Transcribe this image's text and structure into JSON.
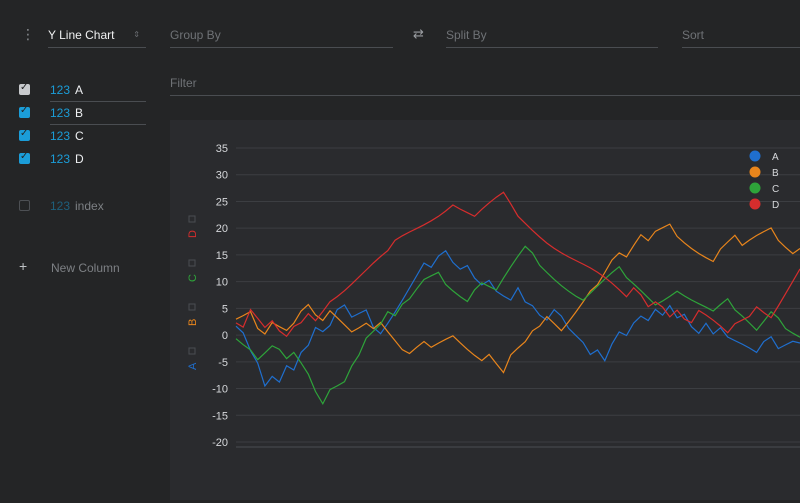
{
  "toolbar": {
    "plugin": "Y Line Chart",
    "group_by_placeholder": "Group By",
    "split_by_placeholder": "Split By",
    "sort_placeholder": "Sort",
    "filter_placeholder": "Filter"
  },
  "columns": [
    {
      "type": "123",
      "name": "A",
      "checked": true
    },
    {
      "type": "123",
      "name": "B",
      "checked": true
    },
    {
      "type": "123",
      "name": "C",
      "checked": true
    },
    {
      "type": "123",
      "name": "D",
      "checked": true
    }
  ],
  "inactive_columns": [
    {
      "type": "123",
      "name": "index",
      "checked": false
    }
  ],
  "new_column_label": "New Column",
  "chart_data": {
    "type": "line",
    "ylim": [
      -22,
      37
    ],
    "yticks": [
      35,
      30,
      25,
      20,
      15,
      10,
      5,
      0,
      -5,
      -10,
      -15,
      -20
    ],
    "legend_position": "top-right",
    "series": [
      {
        "name": "A",
        "color": "#1f6fcf",
        "values": [
          1,
          0,
          -3,
          -5,
          -9,
          -7,
          -8,
          -5,
          -6,
          -3,
          -2,
          1,
          0,
          1,
          4,
          5,
          3,
          4,
          5,
          2,
          1,
          3,
          5,
          7,
          9,
          11,
          13,
          12,
          14,
          15,
          13,
          12,
          13,
          11,
          10,
          11,
          9,
          8,
          7,
          9,
          6,
          5,
          3,
          2,
          4,
          3,
          1,
          0,
          -1,
          -3,
          -2,
          -4,
          -1,
          1,
          0,
          2,
          3,
          2,
          4,
          3,
          5,
          3,
          4,
          2,
          1,
          3,
          1,
          2,
          0,
          -1,
          -2,
          -3,
          -4,
          -2,
          -1,
          -3,
          -2,
          -1,
          -1
        ]
      },
      {
        "name": "B",
        "color": "#e8851c",
        "values": [
          3,
          4,
          5,
          2,
          1,
          3,
          2,
          1,
          2,
          4,
          5,
          3,
          2,
          4,
          3,
          2,
          1,
          2,
          3,
          2,
          3,
          1,
          -1,
          -3,
          -4,
          -3,
          -2,
          -3,
          -2,
          -1,
          0,
          -1,
          -2,
          -3,
          -4,
          -3,
          -5,
          -7,
          -4,
          -3,
          -2,
          0,
          1,
          3,
          2,
          1,
          3,
          5,
          7,
          9,
          10,
          12,
          14,
          15,
          14,
          16,
          18,
          17,
          19,
          20,
          21,
          19,
          18,
          17,
          16,
          15,
          14,
          16,
          17,
          18,
          16,
          17,
          18,
          19,
          20,
          18,
          17,
          16,
          17
        ]
      },
      {
        "name": "C",
        "color": "#2ea43a",
        "values": [
          0,
          -1,
          -2,
          -4,
          -3,
          -2,
          -3,
          -5,
          -4,
          -6,
          -8,
          -11,
          -13,
          -10,
          -9,
          -8,
          -5,
          -3,
          0,
          1,
          2,
          4,
          3,
          5,
          6,
          8,
          10,
          11,
          12,
          10,
          9,
          8,
          7,
          9,
          10,
          9,
          8,
          10,
          12,
          14,
          16,
          15,
          13,
          12,
          11,
          10,
          9,
          8,
          7,
          8,
          9,
          10,
          11,
          12,
          10,
          9,
          8,
          7,
          6,
          7,
          8,
          9,
          8,
          7,
          6,
          5,
          4,
          5,
          6,
          4,
          3,
          2,
          1,
          3,
          5,
          4,
          2,
          1,
          0
        ]
      },
      {
        "name": "D",
        "color": "#d62d2d",
        "values": [
          3,
          2,
          5,
          3,
          1,
          2,
          0,
          -1,
          1,
          2,
          4,
          3,
          5,
          7,
          8,
          9,
          10,
          11,
          12,
          13,
          14,
          15,
          17,
          18,
          19,
          20,
          21,
          22,
          23,
          24,
          25,
          24,
          23,
          22,
          23,
          24,
          25,
          26,
          24,
          22,
          21,
          20,
          19,
          18,
          17,
          16,
          15,
          14,
          13,
          12,
          11,
          10,
          9,
          8,
          7,
          9,
          8,
          6,
          7,
          6,
          4,
          5,
          3,
          2,
          4,
          3,
          2,
          1,
          0,
          2,
          3,
          4,
          6,
          5,
          4,
          6,
          8,
          10,
          12
        ]
      }
    ]
  }
}
